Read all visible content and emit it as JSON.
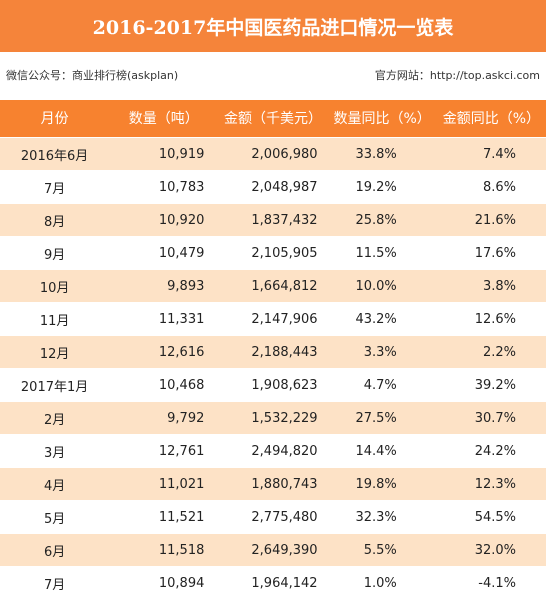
{
  "header": {
    "title": "2016-2017年中国医药品进口情况一览表",
    "source_left": "微信公众号：商业排行榜(askplan)",
    "source_right": "官方网站：http://top.askci.com"
  },
  "table": {
    "headers": [
      "月份",
      "数量（吨）",
      "金额（千美元）",
      "数量同比（%）",
      "金额同比（%）"
    ],
    "rows": [
      [
        "2016年6月",
        "10,919",
        "2,006,980",
        "33.8%",
        "7.4%"
      ],
      [
        "7月",
        "10,783",
        "2,048,987",
        "19.2%",
        "8.6%"
      ],
      [
        "8月",
        "10,920",
        "1,837,432",
        "25.8%",
        "21.6%"
      ],
      [
        "9月",
        "10,479",
        "2,105,905",
        "11.5%",
        "17.6%"
      ],
      [
        "10月",
        "9,893",
        "1,664,812",
        "10.0%",
        "3.8%"
      ],
      [
        "11月",
        "11,331",
        "2,147,906",
        "43.2%",
        "12.6%"
      ],
      [
        "12月",
        "12,616",
        "2,188,443",
        "3.3%",
        "2.2%"
      ],
      [
        "2017年1月",
        "10,468",
        "1,908,623",
        "4.7%",
        "39.2%"
      ],
      [
        "2月",
        "9,792",
        "1,532,229",
        "27.5%",
        "30.7%"
      ],
      [
        "3月",
        "12,761",
        "2,494,820",
        "14.4%",
        "24.2%"
      ],
      [
        "4月",
        "11,021",
        "1,880,743",
        "19.8%",
        "12.3%"
      ],
      [
        "5月",
        "11,521",
        "2,775,480",
        "32.3%",
        "54.5%"
      ],
      [
        "6月",
        "11,518",
        "2,649,390",
        "5.5%",
        "32.0%"
      ],
      [
        "7月",
        "10,894",
        "1,964,142",
        "1.0%",
        "-4.1%"
      ]
    ]
  }
}
